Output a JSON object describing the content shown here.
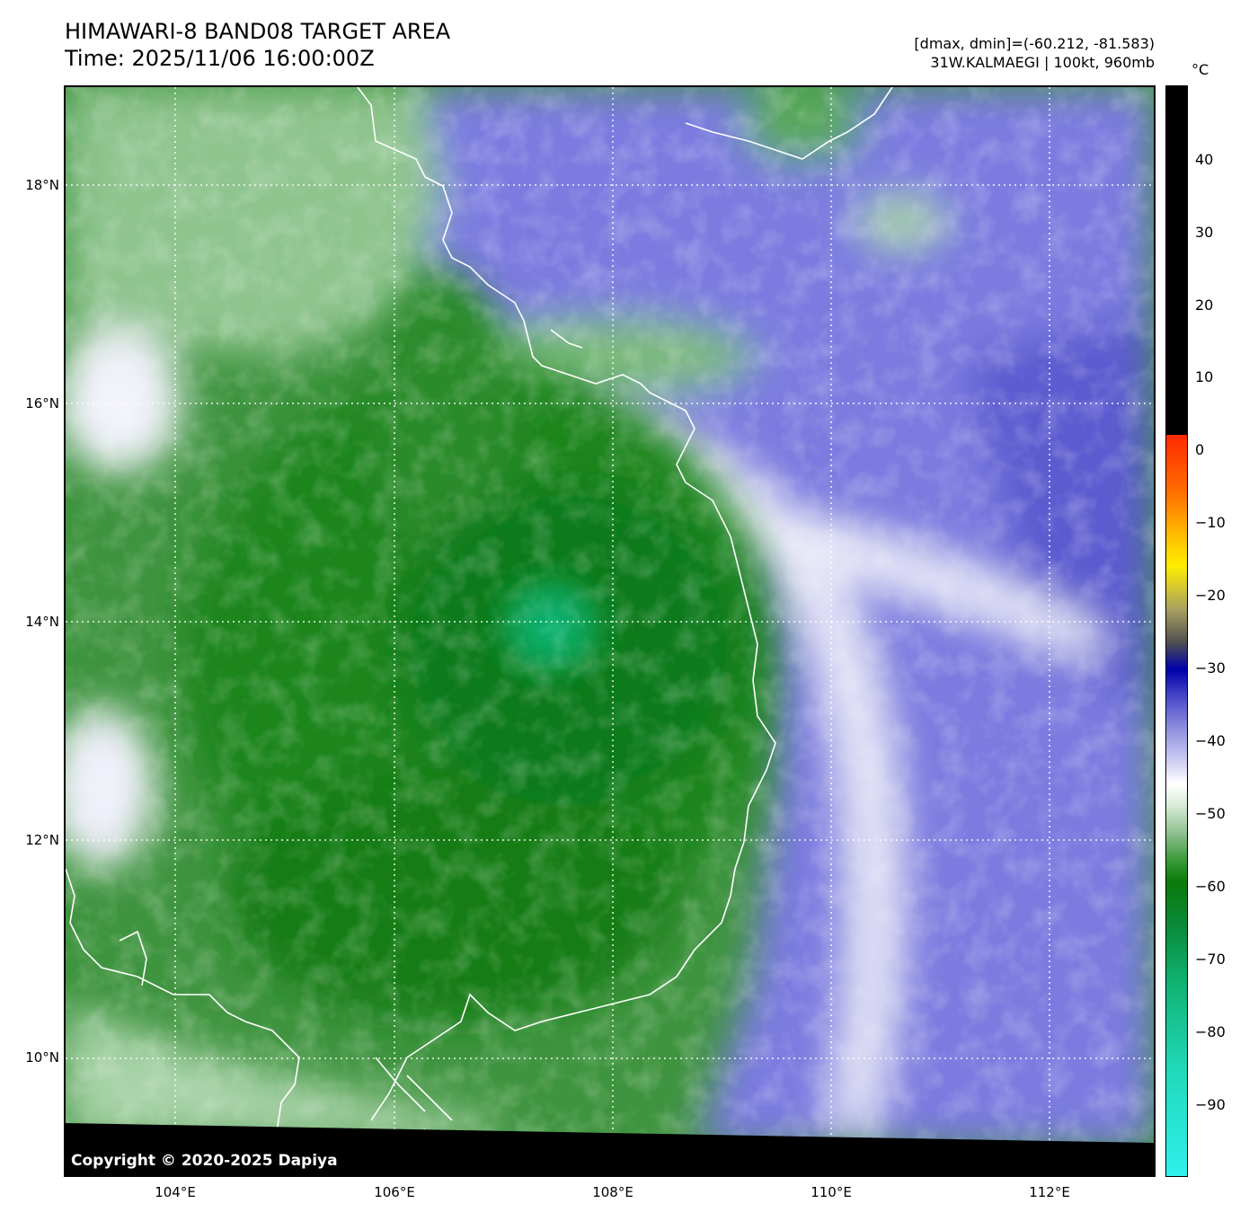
{
  "header": {
    "title_line1": "HIMAWARI-8 BAND08 TARGET AREA",
    "title_line2": "Time: 2025/11/06 16:00:00Z",
    "range_text": "[dmax, dmin]=(-60.212, -81.583)",
    "storm_text": "31W.KALMAEGI | 100kt, 960mb"
  },
  "map": {
    "copyright": "Copyright © 2020-2025 Dapiya",
    "x_ticks": [
      "104°E",
      "106°E",
      "108°E",
      "110°E",
      "112°E"
    ],
    "y_ticks": [
      "18°N",
      "16°N",
      "14°N",
      "12°N",
      "10°N"
    ]
  },
  "colorbar": {
    "unit": "°C",
    "labels": [
      "40",
      "30",
      "20",
      "10",
      "0",
      "−10",
      "−20",
      "−30",
      "−40",
      "−50",
      "−60",
      "−70",
      "−80",
      "−90"
    ]
  },
  "colors": {
    "background": "#000000",
    "cloud_green": "#0a7a0a",
    "eye_teal": "#10b070",
    "dry_blue": "#5050c8",
    "coastline": "#ffffff"
  }
}
